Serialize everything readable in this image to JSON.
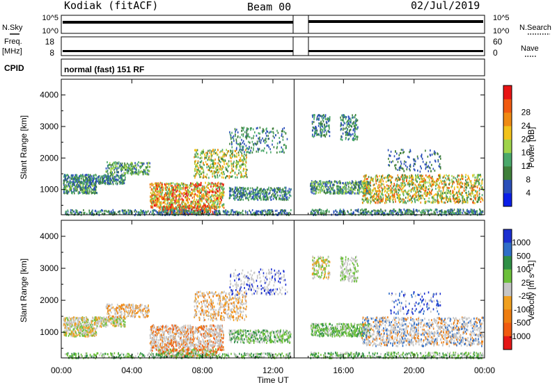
{
  "header": {
    "station": "Kodiak (fitACF)",
    "beam": "Beam 00",
    "date": "02/Jul/2019"
  },
  "noise_panel": {
    "left_label": "N.Sky",
    "right_label": "N.Search",
    "left_ticks": [
      "10^5",
      "10^0"
    ],
    "right_ticks": [
      "10^5",
      "10^0"
    ]
  },
  "freq_panel": {
    "left_label": "Freq.",
    "left_unit": "[MHz]",
    "right_label": "Nave",
    "left_ticks": [
      "18",
      "8"
    ],
    "right_ticks": [
      "60",
      "0"
    ]
  },
  "cpid_panel": {
    "label": "CPID",
    "text": "normal (fast) 151 RF"
  },
  "x_axis": {
    "label": "Time UT",
    "ticks": [
      "00:00",
      "04:00",
      "08:00",
      "12:00",
      "16:00",
      "20:00",
      "00:00"
    ]
  },
  "chart_data": [
    {
      "type": "heatmap",
      "name": "power",
      "ylabel": "Slant Range [km]",
      "yticks": [
        "1000",
        "2000",
        "3000",
        "4000"
      ],
      "ylim": [
        200,
        4500
      ],
      "xlim": [
        0,
        24
      ],
      "data_gap_hours": [
        13.2,
        14.1
      ],
      "colorbar": {
        "label": "Power [dB]",
        "ticks": [
          "4",
          "8",
          "12",
          "16",
          "20",
          "24",
          "28"
        ],
        "colors": [
          "#0a1ee8",
          "#2a4fb8",
          "#3f7f3a",
          "#4aa86a",
          "#9fd34a",
          "#f2c21a",
          "#ef8a12",
          "#f15a10",
          "#e81414"
        ]
      }
    },
    {
      "type": "heatmap",
      "name": "velocity",
      "ylabel": "Slant Range [km]",
      "yticks": [
        "1000",
        "2000",
        "3000",
        "4000"
      ],
      "ylim": [
        200,
        4500
      ],
      "xlim": [
        0,
        24
      ],
      "data_gap_hours": [
        13.2,
        14.1
      ],
      "colorbar": {
        "label": "Velocity [m s^-1]",
        "ticks": [
          "1000",
          "500",
          "100",
          "25",
          "-25",
          "-100",
          "-500",
          "-1000"
        ],
        "colors": [
          "#1b2fd0",
          "#2f6ec8",
          "#2f8f46",
          "#6cc03a",
          "#c6c6c6",
          "#f0a020",
          "#ee7d10",
          "#f05a10",
          "#e51616"
        ]
      }
    }
  ]
}
